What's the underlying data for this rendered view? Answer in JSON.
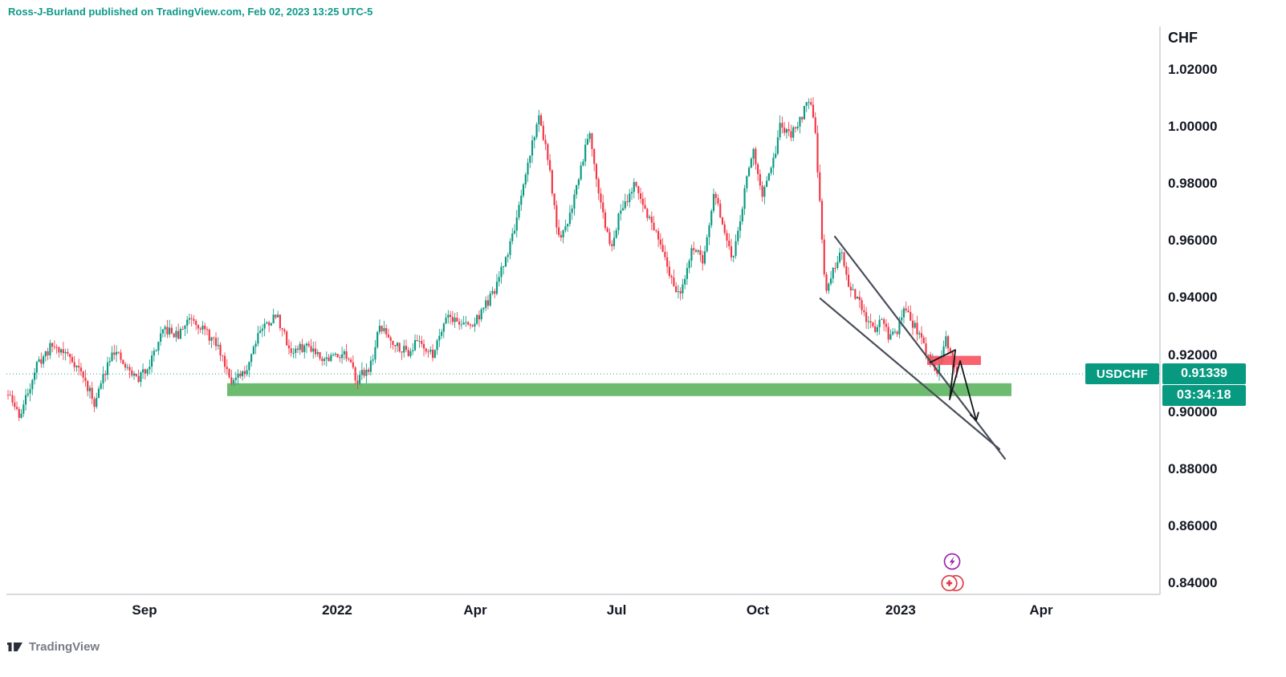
{
  "meta": {
    "publish_line": "Ross-J-Burland published on TradingView.com, Feb 02, 2023 13:25 UTC-5",
    "brand": "TradingView"
  },
  "colors": {
    "up": "#089981",
    "down": "#f23645",
    "publish": "#0f998a",
    "axis_text": "#131722",
    "axis_line": "#b2b5be",
    "support_zone": "#5fb563",
    "resistance_box": "#f7525f",
    "channel": "#4a4e59",
    "projection": "#15171c",
    "price_line": "#089981",
    "badge_bg": "#089981",
    "event_purple": "#9c27b0",
    "event_red": "#e23a44",
    "footer_text": "#787b86",
    "logo": "#2a2e39"
  },
  "chart_data": {
    "type": "candlestick",
    "symbol": "USDCHF",
    "quote_currency": "CHF",
    "timeframe_hint": "daily",
    "last_price": 0.91339,
    "last_price_label": "0.91339",
    "countdown": "03:34:18",
    "y_axis": {
      "label": "CHF",
      "min": 0.84,
      "max": 1.02,
      "grid": false,
      "ticks": [
        {
          "value": 1.02,
          "label": "1.02000"
        },
        {
          "value": 1.0,
          "label": "1.00000"
        },
        {
          "value": 0.98,
          "label": "0.98000"
        },
        {
          "value": 0.96,
          "label": "0.96000"
        },
        {
          "value": 0.94,
          "label": "0.94000"
        },
        {
          "value": 0.92,
          "label": "0.92000"
        },
        {
          "value": 0.9,
          "label": "0.90000"
        },
        {
          "value": 0.88,
          "label": "0.88000"
        },
        {
          "value": 0.86,
          "label": "0.86000"
        },
        {
          "value": 0.84,
          "label": "0.84000"
        }
      ]
    },
    "x_axis": {
      "ticks": [
        {
          "label": "Sep",
          "t": 0.1197
        },
        {
          "label": "2022",
          "t": 0.2867
        },
        {
          "label": "Apr",
          "t": 0.4064
        },
        {
          "label": "Jul",
          "t": 0.5289
        },
        {
          "label": "Oct",
          "t": 0.6514
        },
        {
          "label": "2023",
          "t": 0.7752
        },
        {
          "label": "Apr",
          "t": 0.897
        }
      ]
    },
    "candles": {
      "n": 430,
      "t_start": 0.0014,
      "t_end": 0.824
    },
    "keypoints": [
      [
        0.0014,
        0.906
      ],
      [
        0.0118,
        0.8985
      ],
      [
        0.0257,
        0.916
      ],
      [
        0.0397,
        0.9235
      ],
      [
        0.0536,
        0.92
      ],
      [
        0.064,
        0.9145
      ],
      [
        0.0765,
        0.903
      ],
      [
        0.0919,
        0.9225
      ],
      [
        0.1023,
        0.916
      ],
      [
        0.1141,
        0.9115
      ],
      [
        0.1232,
        0.9165
      ],
      [
        0.1371,
        0.929
      ],
      [
        0.1489,
        0.9265
      ],
      [
        0.1594,
        0.934
      ],
      [
        0.1719,
        0.9285
      ],
      [
        0.1837,
        0.9225
      ],
      [
        0.1963,
        0.9105
      ],
      [
        0.2067,
        0.9135
      ],
      [
        0.2185,
        0.9285
      ],
      [
        0.2345,
        0.934
      ],
      [
        0.2464,
        0.921
      ],
      [
        0.2624,
        0.9235
      ],
      [
        0.2763,
        0.9185
      ],
      [
        0.2923,
        0.921
      ],
      [
        0.3041,
        0.9115
      ],
      [
        0.316,
        0.9165
      ],
      [
        0.3236,
        0.93
      ],
      [
        0.3355,
        0.9245
      ],
      [
        0.348,
        0.921
      ],
      [
        0.3577,
        0.9255
      ],
      [
        0.3689,
        0.9195
      ],
      [
        0.3814,
        0.9345
      ],
      [
        0.3911,
        0.9315
      ],
      [
        0.4036,
        0.93
      ],
      [
        0.4134,
        0.9365
      ],
      [
        0.4224,
        0.9415
      ],
      [
        0.4342,
        0.9555
      ],
      [
        0.4454,
        0.9725
      ],
      [
        0.4551,
        0.9935
      ],
      [
        0.4621,
        1.004
      ],
      [
        0.469,
        0.9895
      ],
      [
        0.4795,
        0.9585
      ],
      [
        0.4885,
        0.9695
      ],
      [
        0.4989,
        0.9875
      ],
      [
        0.5052,
        1.0
      ],
      [
        0.5149,
        0.9735
      ],
      [
        0.5233,
        0.9575
      ],
      [
        0.5337,
        0.9725
      ],
      [
        0.5442,
        0.979
      ],
      [
        0.5546,
        0.9705
      ],
      [
        0.5637,
        0.9615
      ],
      [
        0.5734,
        0.9495
      ],
      [
        0.5845,
        0.94
      ],
      [
        0.5943,
        0.9585
      ],
      [
        0.604,
        0.9525
      ],
      [
        0.6138,
        0.977
      ],
      [
        0.6221,
        0.9635
      ],
      [
        0.6291,
        0.9525
      ],
      [
        0.6402,
        0.978
      ],
      [
        0.6472,
        0.9935
      ],
      [
        0.6555,
        0.9755
      ],
      [
        0.6639,
        0.9855
      ],
      [
        0.6708,
        1.0005
      ],
      [
        0.6799,
        0.9965
      ],
      [
        0.6889,
        1.0035
      ],
      [
        0.6959,
        1.0105
      ],
      [
        0.7008,
        0.999
      ],
      [
        0.7056,
        0.9715
      ],
      [
        0.7098,
        0.9425
      ],
      [
        0.7168,
        0.949
      ],
      [
        0.7237,
        0.9555
      ],
      [
        0.7307,
        0.9445
      ],
      [
        0.7377,
        0.9395
      ],
      [
        0.7446,
        0.9325
      ],
      [
        0.7516,
        0.9285
      ],
      [
        0.7585,
        0.9335
      ],
      [
        0.7655,
        0.9255
      ],
      [
        0.7724,
        0.9285
      ],
      [
        0.7794,
        0.9365
      ],
      [
        0.7864,
        0.9305
      ],
      [
        0.7933,
        0.9255
      ],
      [
        0.8003,
        0.9185
      ],
      [
        0.8072,
        0.9145
      ],
      [
        0.8142,
        0.9255
      ],
      [
        0.8198,
        0.9185
      ],
      [
        0.824,
        0.91339
      ]
    ],
    "annotations": {
      "support_zone": {
        "t1": 0.1914,
        "t2": 0.8713,
        "p_top": 0.9101,
        "p_bot": 0.9056
      },
      "resistance_box": {
        "t1": 0.7982,
        "t2": 0.8448,
        "p_top": 0.9197,
        "p_bot": 0.9165
      },
      "channel_upper": {
        "t1": 0.7182,
        "p1": 0.9615,
        "t2": 0.8657,
        "p2": 0.8836
      },
      "channel_lower": {
        "t1": 0.7056,
        "p1": 0.9398,
        "t2": 0.8608,
        "p2": 0.887
      },
      "projection": [
        [
          0.8003,
          0.9173
        ],
        [
          0.8226,
          0.9218
        ],
        [
          0.8177,
          0.9044
        ],
        [
          0.8268,
          0.9179
        ],
        [
          0.8407,
          0.8971
        ]
      ],
      "current_price_line": 0.91339
    },
    "events": [
      {
        "name": "economic-event",
        "icon": "lightning",
        "t": 0.8198
      },
      {
        "name": "swiss-franc-event",
        "icon": "chf-coin",
        "t": 0.8198
      }
    ]
  }
}
